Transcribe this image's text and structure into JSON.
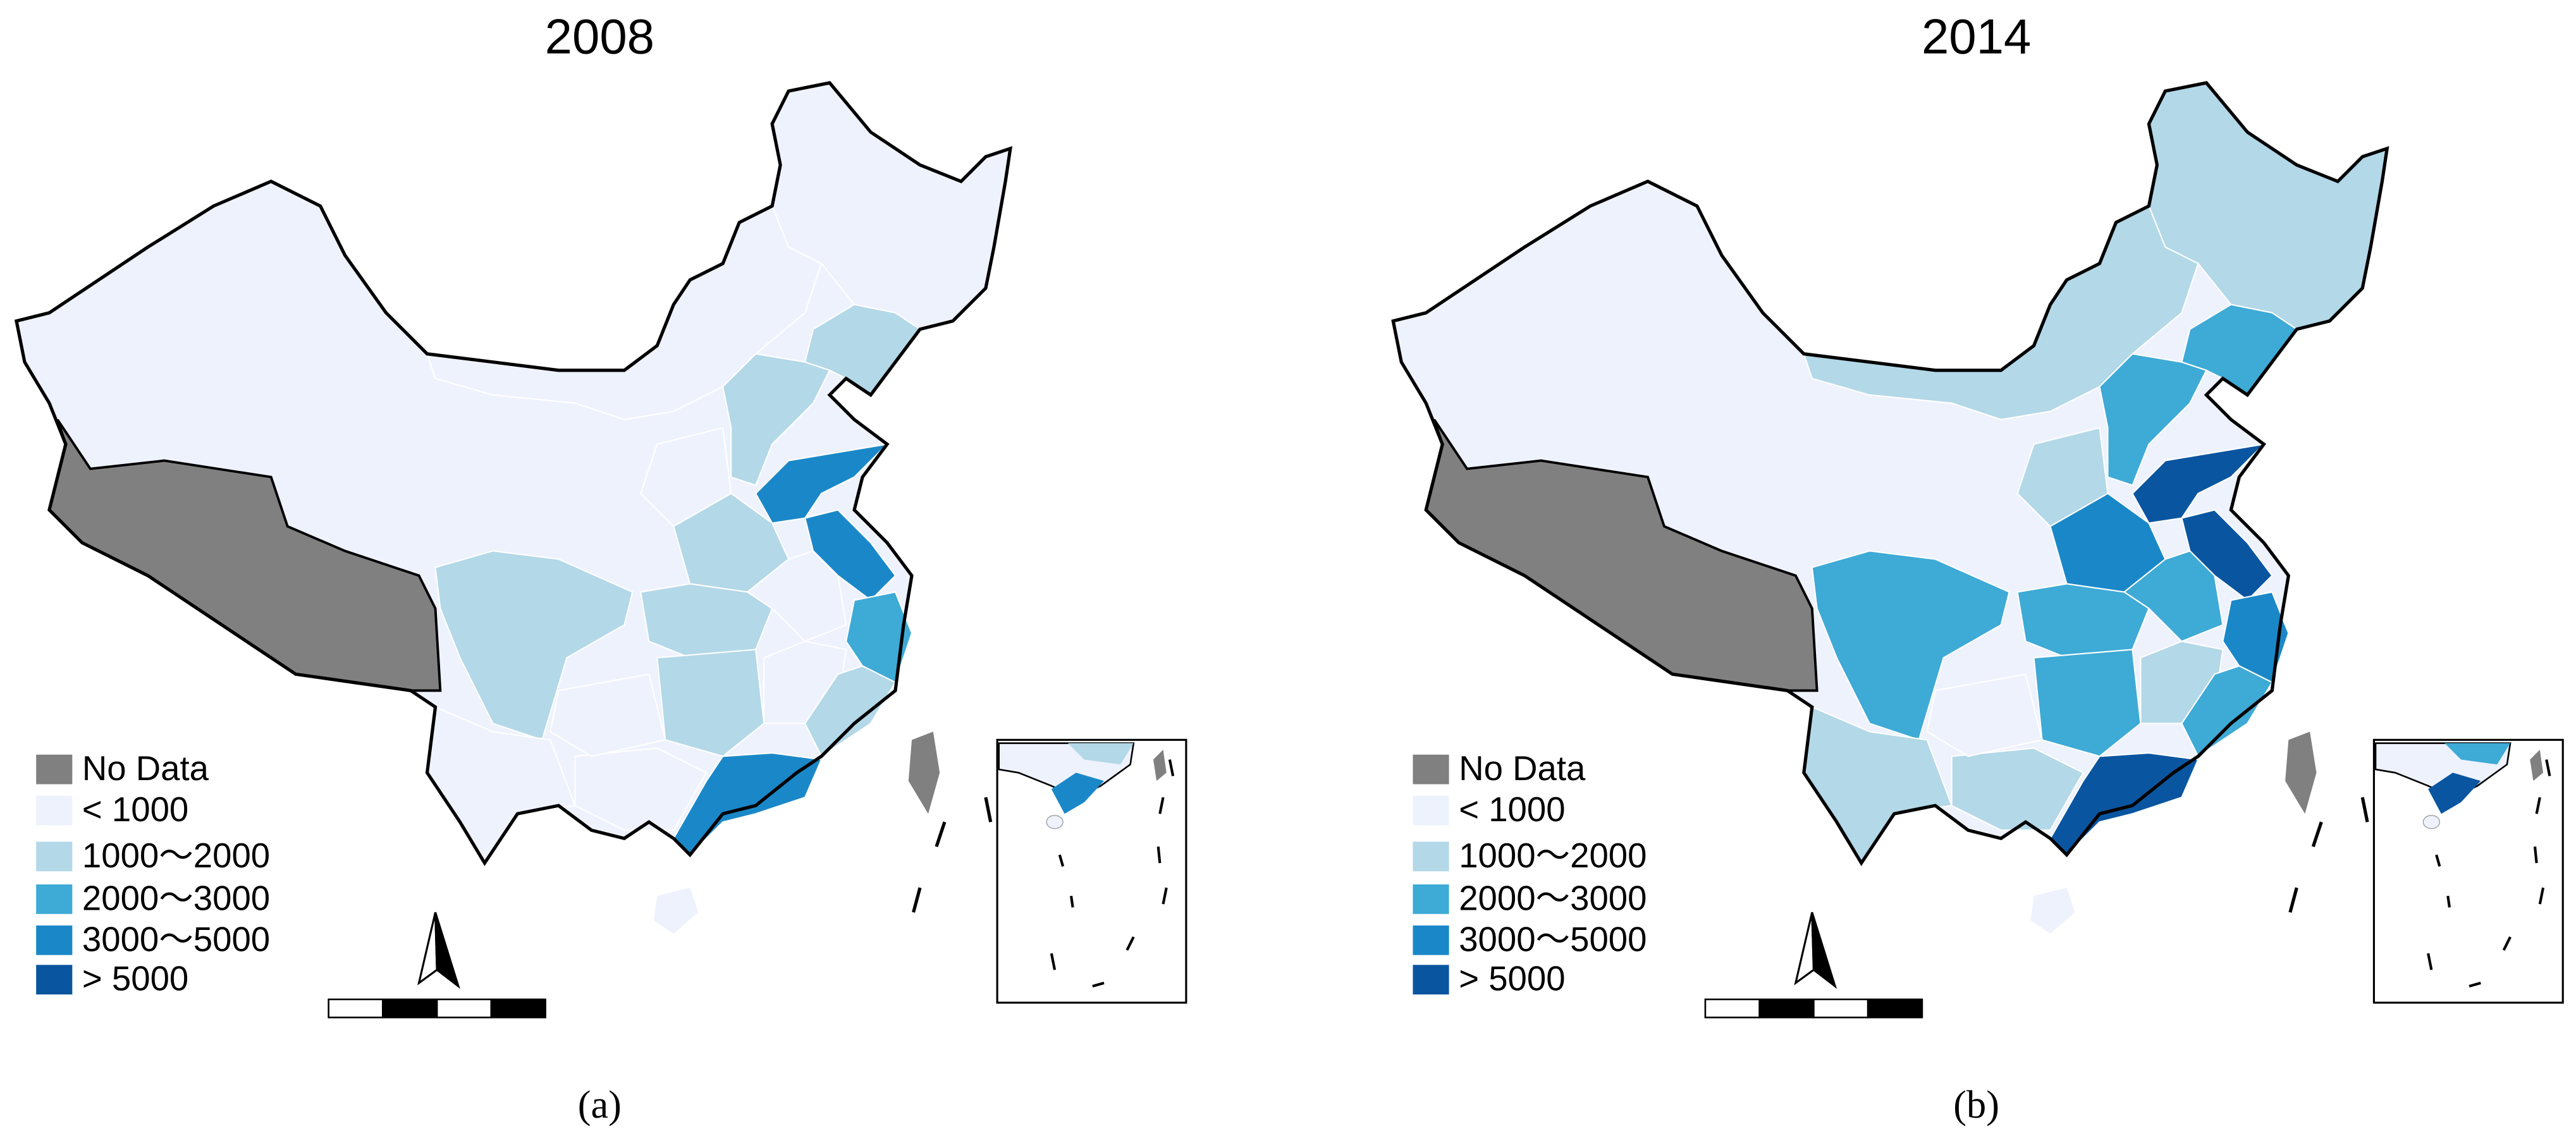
{
  "panels": [
    {
      "title": "2008",
      "caption": "(a)",
      "legend": [
        {
          "label": "No Data",
          "color": "#808080"
        },
        {
          "label": "< 1000",
          "color": "#eef2fd"
        },
        {
          "label": "1000～2000",
          "color": "#b3d8e8"
        },
        {
          "label": "2000～3000",
          "color": "#3eaad6"
        },
        {
          "label": "3000～5000",
          "color": "#1a88c8"
        },
        {
          "label": "> 5000",
          "color": "#0a55a0"
        }
      ]
    },
    {
      "title": "2014",
      "caption": "(b)",
      "legend": [
        {
          "label": "No Data",
          "color": "#808080"
        },
        {
          "label": "< 1000",
          "color": "#eef2fd"
        },
        {
          "label": "1000～2000",
          "color": "#b3d8e8"
        },
        {
          "label": "2000～3000",
          "color": "#3eaad6"
        },
        {
          "label": "3000～5000",
          "color": "#1a88c8"
        },
        {
          "label": "> 5000",
          "color": "#0a55a0"
        }
      ]
    }
  ]
}
